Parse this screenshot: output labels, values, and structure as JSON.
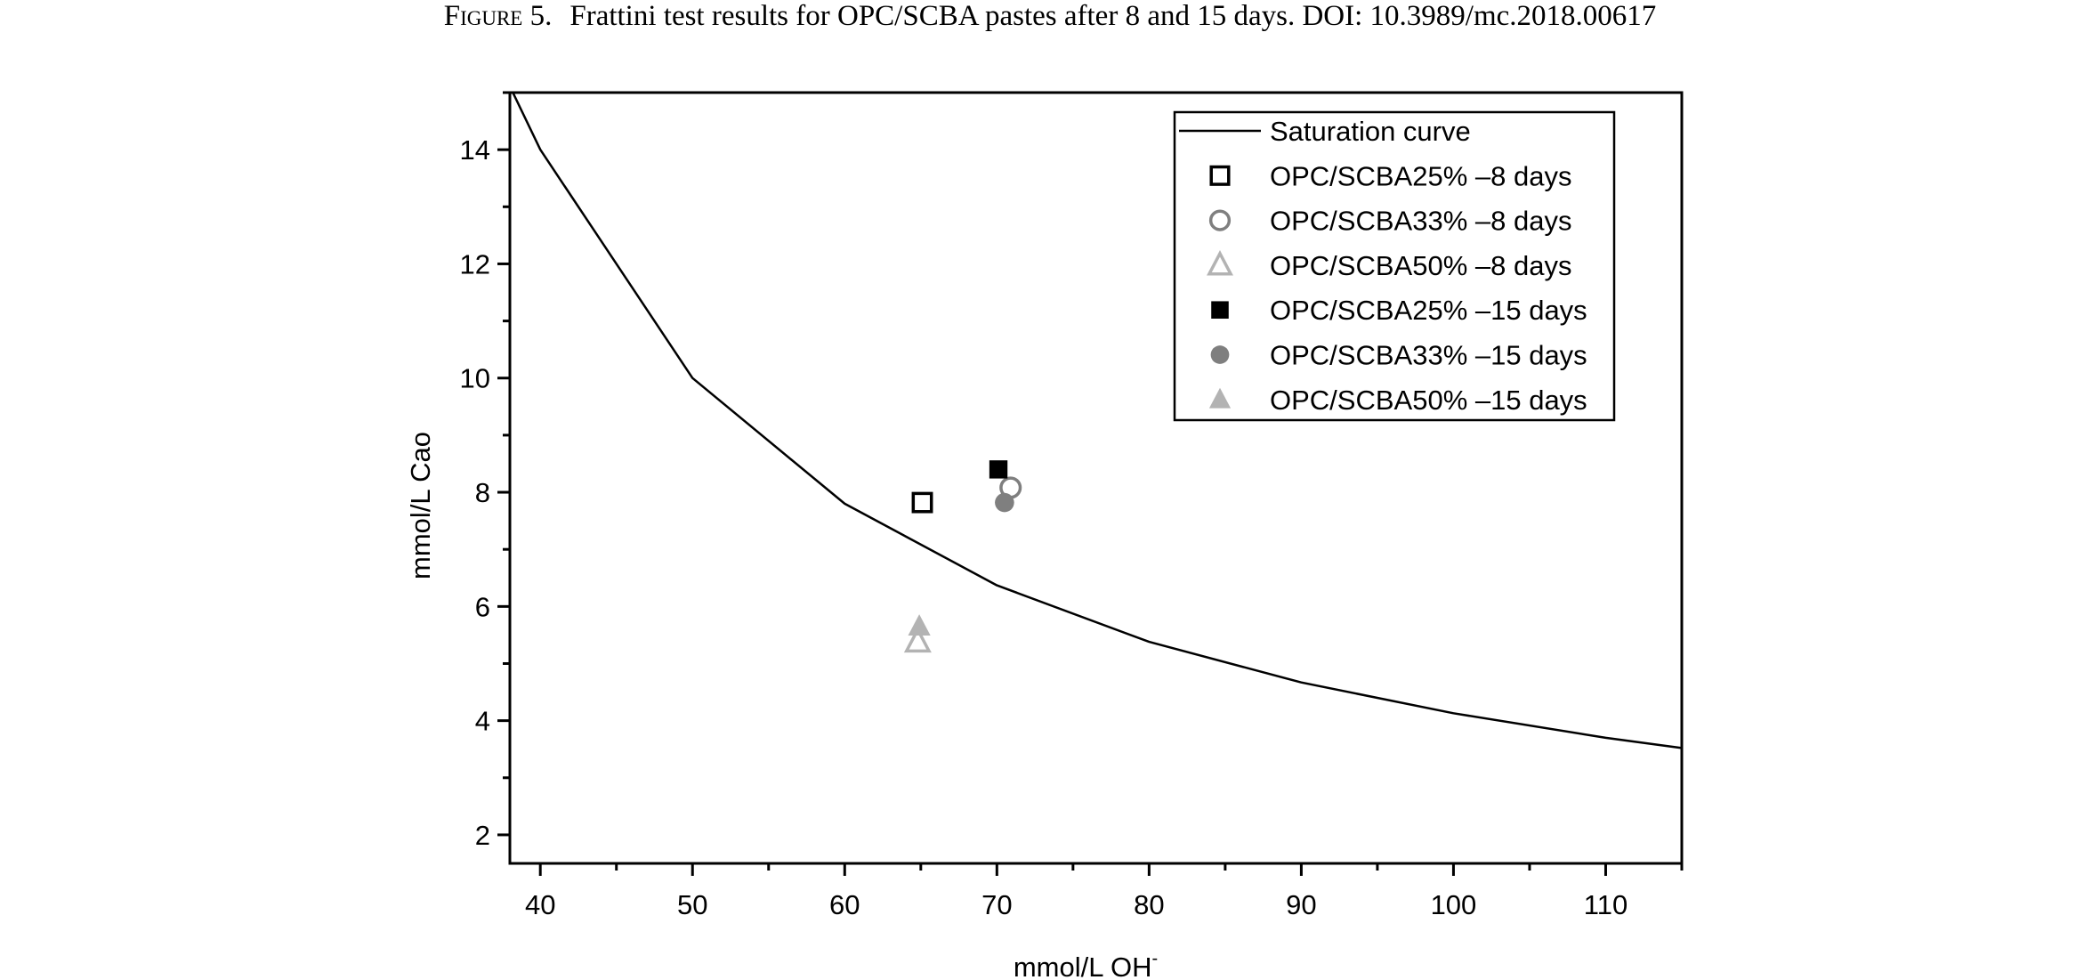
{
  "caption": {
    "label": "Figure 5.",
    "text": "Frattini test results for OPC/SCBA pastes after 8 and 15 days. DOI: 10.3989/mc.2018.00617"
  },
  "chart_data": {
    "type": "scatter",
    "xlabel": "mmol/L OH",
    "xlabel_superscript": "-",
    "ylabel": "mmol/L Cao",
    "xlim": [
      38,
      115
    ],
    "ylim": [
      1.5,
      15
    ],
    "xticks": [
      40,
      50,
      60,
      70,
      80,
      90,
      100,
      110
    ],
    "yticks": [
      2,
      4,
      6,
      8,
      10,
      12,
      14
    ],
    "grid": false,
    "legend_position": "top-right",
    "curve": {
      "name": "Saturation curve",
      "color": "#000000",
      "points": [
        [
          38.2,
          15.0
        ],
        [
          40,
          14.0
        ],
        [
          50,
          10.0
        ],
        [
          60,
          7.8
        ],
        [
          70,
          6.37
        ],
        [
          80,
          5.38
        ],
        [
          90,
          4.67
        ],
        [
          100,
          4.13
        ],
        [
          110,
          3.7
        ],
        [
          115,
          3.52
        ]
      ]
    },
    "series": [
      {
        "name": "OPC/SCBA25% –8 days",
        "marker": "square",
        "filled": false,
        "color": "#000000",
        "points": [
          [
            65.1,
            7.82
          ]
        ]
      },
      {
        "name": "OPC/SCBA33% –8 days",
        "marker": "circle",
        "filled": false,
        "color": "#7f7f7f",
        "points": [
          [
            70.9,
            8.08
          ]
        ]
      },
      {
        "name": "OPC/SCBA50% –8 days",
        "marker": "triangle",
        "filled": false,
        "color": "#b3b3b3",
        "points": [
          [
            64.8,
            5.38
          ]
        ]
      },
      {
        "name": "OPC/SCBA25% –15 days",
        "marker": "square",
        "filled": true,
        "color": "#000000",
        "points": [
          [
            70.1,
            8.4
          ]
        ]
      },
      {
        "name": "OPC/SCBA33% –15 days",
        "marker": "circle",
        "filled": true,
        "color": "#7f7f7f",
        "points": [
          [
            70.5,
            7.82
          ]
        ]
      },
      {
        "name": "OPC/SCBA50% –15 days",
        "marker": "triangle",
        "filled": true,
        "color": "#b3b3b3",
        "points": [
          [
            64.9,
            5.65
          ]
        ]
      }
    ]
  }
}
